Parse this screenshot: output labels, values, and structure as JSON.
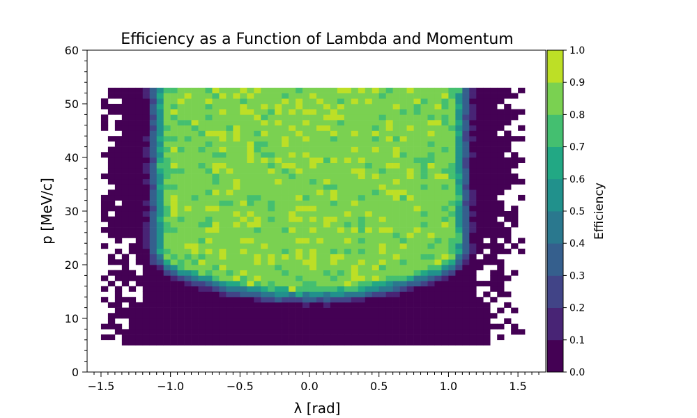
{
  "chart_data": {
    "type": "heatmap",
    "title": "Efficiency as a Function of Lambda and Momentum",
    "xlabel": "λ [rad]",
    "ylabel": "p [MeV/c]",
    "xlim": [
      -1.6,
      1.7
    ],
    "ylim": [
      0,
      60
    ],
    "x_ticks": [
      "−1.5",
      "−1.0",
      "−0.5",
      "0.0",
      "0.5",
      "1.0",
      "1.5"
    ],
    "y_ticks": [
      "0",
      "10",
      "20",
      "30",
      "40",
      "50",
      "60"
    ],
    "bins": {
      "x_start": -1.5,
      "x_width": 0.05,
      "y_start": 5,
      "y_width": 1.0
    },
    "colorbar": {
      "label": "Efficiency",
      "colormap": "viridis",
      "levels": 10,
      "range": [
        0.0,
        1.0
      ],
      "ticks": [
        "0.0",
        "0.1",
        "0.2",
        "0.3",
        "0.4",
        "0.5",
        "0.6",
        "0.7",
        "0.8",
        "0.9",
        "1.0"
      ],
      "colors": [
        "#440154",
        "#482475",
        "#414487",
        "#355f8d",
        "#2a788e",
        "#21918c",
        "#22a884",
        "#44bf70",
        "#7ad151",
        "#bddf26",
        "#fde725"
      ]
    },
    "profile": {
      "description": "Efficiency is ~0 for p below ~13 MeV/c; rises to ~0.8-0.9 in the central region |λ| < ~1.1 for p between ~15 and ~53 MeV/c; edges (|λ| > ~1.2) are ~0; sparse empty/zero bins at the outer edges and a few isolated bins above p = 53."
    }
  }
}
